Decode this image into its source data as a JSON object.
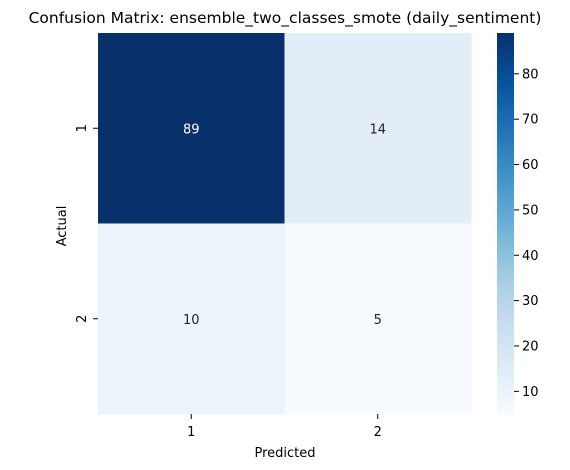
{
  "chart_data": {
    "type": "heatmap",
    "title": "Confusion Matrix: ensemble_two_classes_smote (daily_sentiment)",
    "xlabel": "Predicted",
    "ylabel": "Actual",
    "x_categories": [
      "1",
      "2"
    ],
    "y_categories": [
      "1",
      "2"
    ],
    "matrix": [
      [
        89,
        14
      ],
      [
        10,
        5
      ]
    ],
    "colorscale": "Blues",
    "vmin": 5,
    "vmax": 89,
    "colorbar_ticks": [
      10,
      20,
      30,
      40,
      50,
      60,
      70,
      80
    ]
  }
}
